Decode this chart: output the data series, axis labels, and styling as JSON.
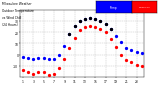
{
  "title": "Milwaukee Weather  Outdoor Temperature  vs Wind Chill  (24 Hours)",
  "background_color": "#ffffff",
  "grid_color": "#bbbbbb",
  "hours": [
    1,
    2,
    3,
    4,
    5,
    6,
    7,
    8,
    9,
    10,
    11,
    12,
    13,
    14,
    15,
    16,
    17,
    18,
    19,
    20,
    21,
    22,
    23,
    24
  ],
  "temp_values": [
    -2,
    -3,
    -4,
    -3,
    -3,
    -4,
    -4,
    0,
    8,
    18,
    26,
    30,
    32,
    33,
    32,
    30,
    27,
    23,
    17,
    11,
    6,
    4,
    2,
    1
  ],
  "windchill_values": [
    -14,
    -16,
    -17,
    -16,
    -16,
    -18,
    -17,
    -12,
    -4,
    6,
    15,
    22,
    25,
    26,
    25,
    23,
    20,
    14,
    7,
    0,
    -5,
    -7,
    -9,
    -10
  ],
  "temp_color": "#000000",
  "windchill_color": "#ff0000",
  "blue_color": "#0000ff",
  "ylim": [
    -20,
    40
  ],
  "xlim": [
    0.5,
    24.5
  ],
  "ytick_labels": [
    "-10",
    "0",
    "10",
    "20",
    "30"
  ],
  "ytick_values": [
    -10,
    0,
    10,
    20,
    30
  ],
  "xtick_values": [
    1,
    3,
    5,
    7,
    9,
    11,
    13,
    15,
    17,
    19,
    21,
    23
  ],
  "grid_xticks": [
    1,
    3,
    5,
    7,
    9,
    11,
    13,
    15,
    17,
    19,
    21,
    23
  ],
  "marker_size": 1.8,
  "legend_blue_label": "Temp",
  "legend_red_label": "Wind Chill"
}
